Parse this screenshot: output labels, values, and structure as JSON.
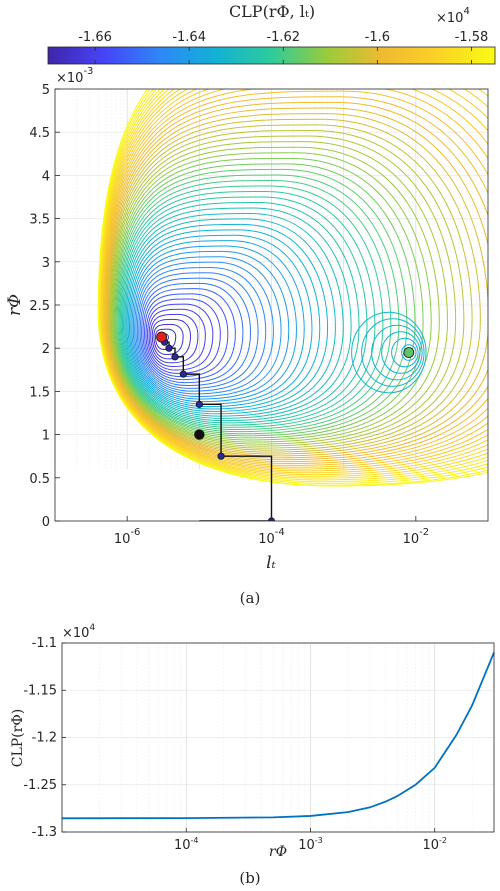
{
  "chart_data": [
    {
      "type": "contour",
      "title": "CLP(rΦ, lₜ)",
      "xlabel": "lₜ",
      "ylabel": "rΦ",
      "xscale": "log",
      "xlim": [
        1e-07,
        0.1
      ],
      "ylim": [
        0,
        0.005
      ],
      "xticks": [
        {
          "value": 1e-06,
          "base": "10",
          "exp": "-6"
        },
        {
          "value": 0.0001,
          "base": "10",
          "exp": "-4"
        },
        {
          "value": 0.01,
          "base": "10",
          "exp": "-2"
        }
      ],
      "yticks": [
        {
          "value": 0,
          "label": "0"
        },
        {
          "value": 0.0005,
          "label": "0.5"
        },
        {
          "value": 0.001,
          "label": "1"
        },
        {
          "value": 0.0015,
          "label": "1.5"
        },
        {
          "value": 0.002,
          "label": "2"
        },
        {
          "value": 0.0025,
          "label": "2.5"
        },
        {
          "value": 0.003,
          "label": "3"
        },
        {
          "value": 0.0035,
          "label": "3.5"
        },
        {
          "value": 0.004,
          "label": "4"
        },
        {
          "value": 0.0045,
          "label": "4.5"
        },
        {
          "value": 0.005,
          "label": "5"
        }
      ],
      "y_multiplier": {
        "base": "×10",
        "exp": "-3"
      },
      "grid": true,
      "colorbar": {
        "position": "top",
        "clim": [
          -16700,
          -15750
        ],
        "ticks": [
          {
            "value": -16600,
            "label": "-1.66"
          },
          {
            "value": -16400,
            "label": "-1.64"
          },
          {
            "value": -16200,
            "label": "-1.62"
          },
          {
            "value": -16000,
            "label": "-1.6"
          },
          {
            "value": -15800,
            "label": "-1.58"
          }
        ],
        "multiplier": {
          "base": "×10",
          "exp": "4"
        }
      },
      "colormap": [
        "#3e26a8",
        "#4743f8",
        "#2e87f7",
        "#12b1d6",
        "#2ecb9b",
        "#9bcb3b",
        "#f0ba31",
        "#fbd225",
        "#f9fb15"
      ],
      "global_minimum": {
        "x": 3e-06,
        "y": 0.00213,
        "color": "#e0201b"
      },
      "local_minimum": {
        "x": 0.008,
        "y": 0.00195,
        "color": "#5cc36a"
      },
      "path": [
        {
          "x": 1e-05,
          "y": 0
        },
        {
          "x": 0.0001,
          "y": 0
        },
        {
          "x": 0.0001,
          "y": 0.00075
        },
        {
          "x": 2e-05,
          "y": 0.00075
        },
        {
          "x": 2e-05,
          "y": 0.00135
        },
        {
          "x": 1e-05,
          "y": 0.00135
        },
        {
          "x": 1e-05,
          "y": 0.0017
        },
        {
          "x": 6e-06,
          "y": 0.0017
        },
        {
          "x": 6e-06,
          "y": 0.0019
        },
        {
          "x": 4.6e-06,
          "y": 0.0019
        },
        {
          "x": 4.6e-06,
          "y": 0.002
        },
        {
          "x": 3.8e-06,
          "y": 0.002
        },
        {
          "x": 3.8e-06,
          "y": 0.00207
        },
        {
          "x": 3.3e-06,
          "y": 0.00207
        },
        {
          "x": 3e-06,
          "y": 0.00213
        }
      ],
      "start_point": {
        "x": 1e-05,
        "y": 0.001
      },
      "caption": "(a)"
    },
    {
      "type": "line",
      "xlabel": "rΦ",
      "ylabel": "CLP(rΦ)",
      "xscale": "log",
      "xlim": [
        1e-05,
        0.03
      ],
      "ylim": [
        -13000,
        -11000
      ],
      "xticks": [
        {
          "value": 0.0001,
          "base": "10",
          "exp": "-4"
        },
        {
          "value": 0.001,
          "base": "10",
          "exp": "-3"
        },
        {
          "value": 0.01,
          "base": "10",
          "exp": "-2"
        }
      ],
      "yticks": [
        {
          "value": -11000,
          "label": "-1.1"
        },
        {
          "value": -11500,
          "label": "-1.15"
        },
        {
          "value": -12000,
          "label": "-1.2"
        },
        {
          "value": -12500,
          "label": "-1.25"
        },
        {
          "value": -13000,
          "label": "-1.3"
        }
      ],
      "y_multiplier": {
        "base": "×10",
        "exp": "4"
      },
      "grid": true,
      "series": [
        {
          "color": "#0072bd",
          "x": [
            1e-05,
            0.0001,
            0.0005,
            0.001,
            0.002,
            0.003,
            0.004,
            0.005,
            0.007,
            0.01,
            0.015,
            0.02,
            0.03
          ],
          "y": [
            -12855,
            -12853,
            -12845,
            -12830,
            -12790,
            -12740,
            -12680,
            -12620,
            -12500,
            -12320,
            -11970,
            -11660,
            -11100
          ]
        }
      ],
      "caption": "(b)"
    }
  ]
}
